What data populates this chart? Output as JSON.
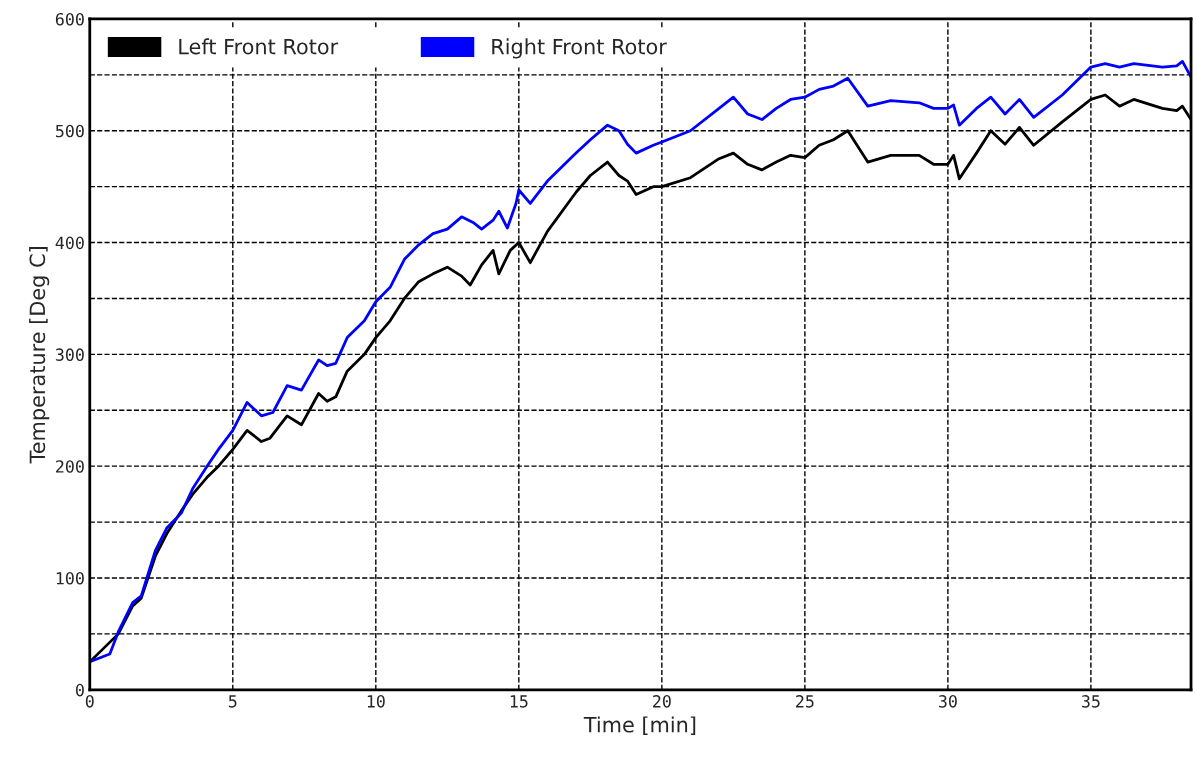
{
  "chart_data": {
    "type": "line",
    "xlabel": "Time [min]",
    "ylabel": "Temperature [Deg C]",
    "xlim": [
      0,
      38.5
    ],
    "ylim": [
      0,
      600
    ],
    "xticks": [
      0,
      5,
      10,
      15,
      20,
      25,
      30,
      35
    ],
    "yticks": [
      0,
      {
        "value": 50,
        "label": null
      },
      100,
      {
        "value": 150,
        "label": null
      },
      200,
      {
        "value": 250,
        "label": null
      },
      300,
      {
        "value": 350,
        "label": null
      },
      400,
      {
        "value": 450,
        "label": null
      },
      500,
      {
        "value": 550,
        "label": null
      },
      600
    ],
    "grid": true,
    "legend": "top left",
    "line_style": "solid",
    "marker": "none",
    "series": [
      {
        "name": "Left Front Rotor",
        "color": "#000000",
        "x": [
          0,
          1.0,
          1.5,
          1.8,
          2.3,
          2.7,
          3.2,
          3.6,
          4.1,
          4.5,
          5.0,
          5.5,
          6.0,
          6.3,
          6.9,
          7.4,
          8.0,
          8.3,
          8.6,
          9.0,
          9.6,
          10.0,
          10.5,
          11.0,
          11.5,
          12.0,
          12.5,
          13.0,
          13.3,
          13.7,
          14.1,
          14.3,
          14.7,
          15.0,
          15.4,
          16.0,
          17.0,
          17.5,
          18.1,
          18.5,
          18.8,
          19.1,
          19.7,
          20.0,
          21.0,
          22.0,
          22.5,
          23.0,
          23.5,
          24.0,
          24.5,
          25.0,
          25.5,
          26.0,
          26.5,
          27.2,
          28.0,
          29.0,
          29.5,
          30.0,
          30.2,
          30.4,
          31.0,
          31.5,
          32.0,
          32.5,
          33.0,
          34.0,
          35.0,
          35.5,
          36.0,
          36.5,
          37.5,
          38.0,
          38.2,
          38.5
        ],
        "values": [
          25,
          50,
          75,
          82,
          120,
          140,
          160,
          175,
          190,
          200,
          215,
          232,
          222,
          225,
          245,
          237,
          265,
          258,
          262,
          285,
          300,
          315,
          330,
          350,
          365,
          372,
          378,
          370,
          362,
          380,
          393,
          372,
          393,
          400,
          382,
          410,
          445,
          460,
          472,
          460,
          455,
          443,
          450,
          450,
          458,
          475,
          480,
          470,
          465,
          472,
          478,
          476,
          487,
          492,
          500,
          472,
          478,
          478,
          470,
          470,
          478,
          457,
          480,
          500,
          488,
          503,
          487,
          508,
          528,
          532,
          522,
          528,
          520,
          518,
          522,
          510
        ]
      },
      {
        "name": "Right Front Rotor",
        "color": "#0000ff",
        "x": [
          0,
          0.7,
          1.0,
          1.5,
          1.8,
          2.3,
          2.7,
          3.2,
          3.6,
          4.1,
          4.5,
          5.0,
          5.5,
          6.0,
          6.4,
          6.9,
          7.4,
          8.0,
          8.3,
          8.6,
          9.0,
          9.6,
          10.0,
          10.5,
          11.0,
          11.5,
          12.0,
          12.5,
          13.0,
          13.4,
          13.7,
          14.1,
          14.3,
          14.6,
          14.9,
          15.0,
          15.4,
          16.0,
          17.0,
          17.5,
          18.1,
          18.5,
          18.8,
          19.1,
          19.7,
          20.0,
          21.0,
          22.0,
          22.5,
          23.0,
          23.5,
          24.0,
          24.5,
          25.0,
          25.5,
          26.0,
          26.5,
          27.2,
          28.0,
          29.0,
          29.5,
          30.0,
          30.2,
          30.4,
          31.0,
          31.5,
          32.0,
          32.5,
          33.0,
          34.0,
          35.0,
          35.5,
          36.0,
          36.5,
          37.5,
          38.0,
          38.2,
          38.5
        ],
        "values": [
          25,
          32,
          52,
          78,
          84,
          125,
          145,
          158,
          180,
          200,
          215,
          232,
          257,
          245,
          248,
          272,
          268,
          295,
          290,
          292,
          315,
          330,
          347,
          360,
          385,
          398,
          408,
          412,
          423,
          418,
          412,
          420,
          428,
          413,
          435,
          447,
          435,
          455,
          480,
          492,
          505,
          500,
          488,
          480,
          487,
          490,
          500,
          520,
          530,
          515,
          510,
          520,
          528,
          530,
          537,
          540,
          547,
          522,
          527,
          525,
          520,
          520,
          523,
          505,
          520,
          530,
          515,
          528,
          512,
          532,
          557,
          560,
          557,
          560,
          557,
          558,
          562,
          548
        ]
      }
    ]
  }
}
